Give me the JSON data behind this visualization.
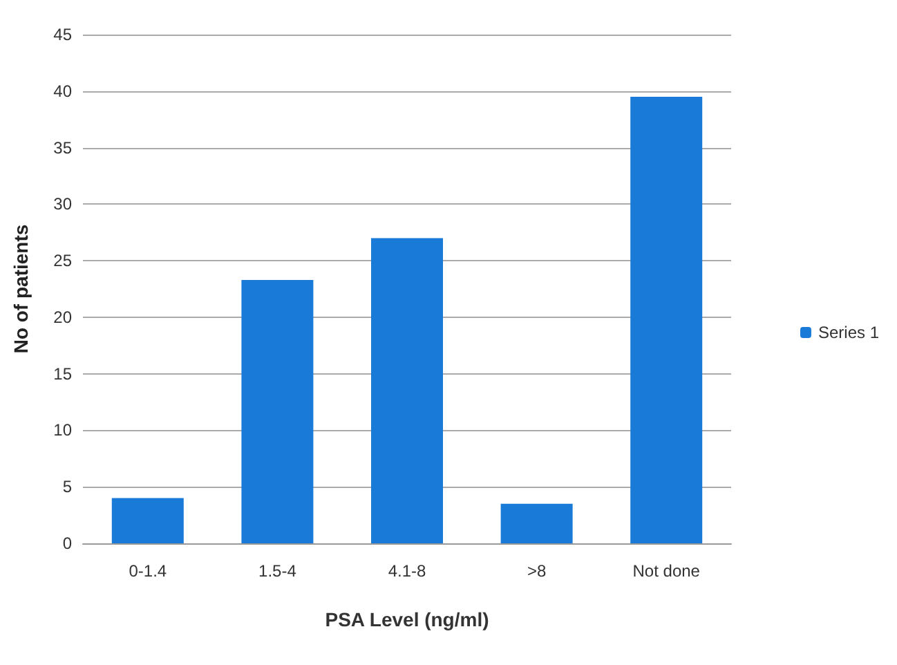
{
  "chart_data": {
    "type": "bar",
    "xlabel": "PSA Level (ng/ml)",
    "ylabel": "No of patients",
    "categories": [
      "0-1.4",
      "1.5-4",
      "4.1-8",
      ">8",
      "Not done"
    ],
    "series": [
      {
        "name": "Series 1",
        "color": "#1a7ad8",
        "values": [
          4,
          23.3,
          27,
          3.5,
          39.5
        ]
      }
    ],
    "ylim": [
      0,
      45
    ],
    "yticks": [
      0,
      5,
      10,
      15,
      20,
      25,
      30,
      35,
      40,
      45
    ],
    "grid": "y",
    "legend": "right"
  }
}
